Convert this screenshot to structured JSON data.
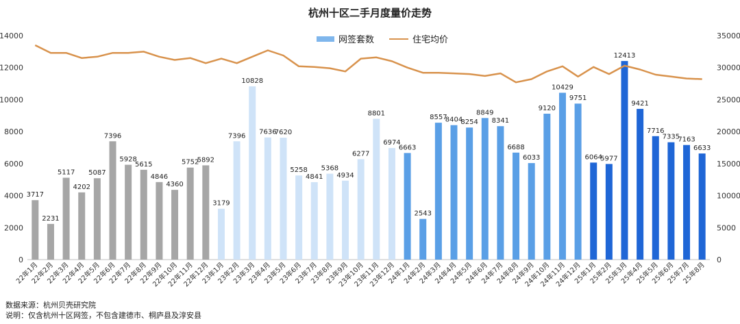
{
  "chart_data": {
    "type": "bar",
    "title": "杭州十区二手月度量价走势",
    "categories": [
      "22年1月",
      "22年2月",
      "22年3月",
      "22年4月",
      "22年5月",
      "22年6月",
      "22年7月",
      "22年8月",
      "22年9月",
      "22年10月",
      "22年11月",
      "22年12月",
      "23年1月",
      "23年2月",
      "23年3月",
      "23年4月",
      "23年5月",
      "23年6月",
      "23年7月",
      "23年8月",
      "23年9月",
      "23年10月",
      "23年11月",
      "23年12月",
      "24年1月",
      "24年2月",
      "24年3月",
      "24年4月",
      "24年5月",
      "24年6月",
      "24年7月",
      "24年8月",
      "24年9月",
      "24年10月",
      "24年11月",
      "24年12月",
      "25年1月",
      "25年2月",
      "25年3月",
      "25年4月",
      "25年5月",
      "25年6月",
      "25年7月",
      "25年8月"
    ],
    "series": [
      {
        "name": "网签套数",
        "type": "bar",
        "axis": "left",
        "values": [
          3717,
          2231,
          5117,
          4202,
          5087,
          7396,
          5928,
          5615,
          4846,
          4360,
          5752,
          5892,
          3179,
          7396,
          10828,
          7636,
          7620,
          5258,
          4841,
          5368,
          4934,
          6277,
          8801,
          6974,
          6663,
          2543,
          8557,
          8404,
          8254,
          8849,
          8341,
          6688,
          6033,
          9120,
          10429,
          9751,
          6064,
          5977,
          12413,
          9421,
          7716,
          7335,
          7163,
          6633
        ]
      },
      {
        "name": "住宅均价",
        "type": "line",
        "axis": "right",
        "values": [
          33500,
          32300,
          32300,
          31500,
          31700,
          32300,
          32300,
          32500,
          31700,
          31200,
          31500,
          30700,
          31400,
          30700,
          31700,
          32700,
          31900,
          30200,
          30100,
          29900,
          29400,
          31400,
          31600,
          31000,
          30000,
          29200,
          29200,
          29100,
          29000,
          28700,
          29100,
          27700,
          28200,
          29400,
          30200,
          28600,
          30100,
          29000,
          30300,
          29700,
          28900,
          28600,
          28300,
          28200
        ]
      }
    ],
    "bar_colors": [
      "#a6a6a6",
      "#a6a6a6",
      "#a6a6a6",
      "#a6a6a6",
      "#a6a6a6",
      "#a6a6a6",
      "#a6a6a6",
      "#a6a6a6",
      "#a6a6a6",
      "#a6a6a6",
      "#a6a6a6",
      "#a6a6a6",
      "#cfe3f8",
      "#cfe3f8",
      "#cfe3f8",
      "#cfe3f8",
      "#cfe3f8",
      "#cfe3f8",
      "#cfe3f8",
      "#cfe3f8",
      "#cfe3f8",
      "#cfe3f8",
      "#cfe3f8",
      "#cfe3f8",
      "#5a9fe6",
      "#5a9fe6",
      "#5a9fe6",
      "#5a9fe6",
      "#5a9fe6",
      "#5a9fe6",
      "#5a9fe6",
      "#5a9fe6",
      "#5a9fe6",
      "#5a9fe6",
      "#5a9fe6",
      "#5a9fe6",
      "#1f66d6",
      "#1f66d6",
      "#1f66d6",
      "#1f66d6",
      "#1f66d6",
      "#1f66d6",
      "#1f66d6",
      "#1f66d6"
    ],
    "line_color": "#d8924c",
    "left_axis": {
      "ylim": [
        0,
        14000
      ],
      "ticks": [
        0,
        2000,
        4000,
        6000,
        8000,
        10000,
        12000,
        14000
      ]
    },
    "right_axis": {
      "ylim": [
        0,
        35000
      ],
      "ticks": [
        0,
        5000,
        10000,
        15000,
        20000,
        25000,
        30000,
        35000
      ]
    },
    "legend_position": "top-center",
    "grid": false
  },
  "legend": {
    "bar_label": "网签套数",
    "line_label": "住宅均价"
  },
  "footnotes": {
    "source": "数据来源：杭州贝壳研究院",
    "note": "说明：仅含杭州十区网签，不包含建德市、桐庐县及淳安县"
  }
}
